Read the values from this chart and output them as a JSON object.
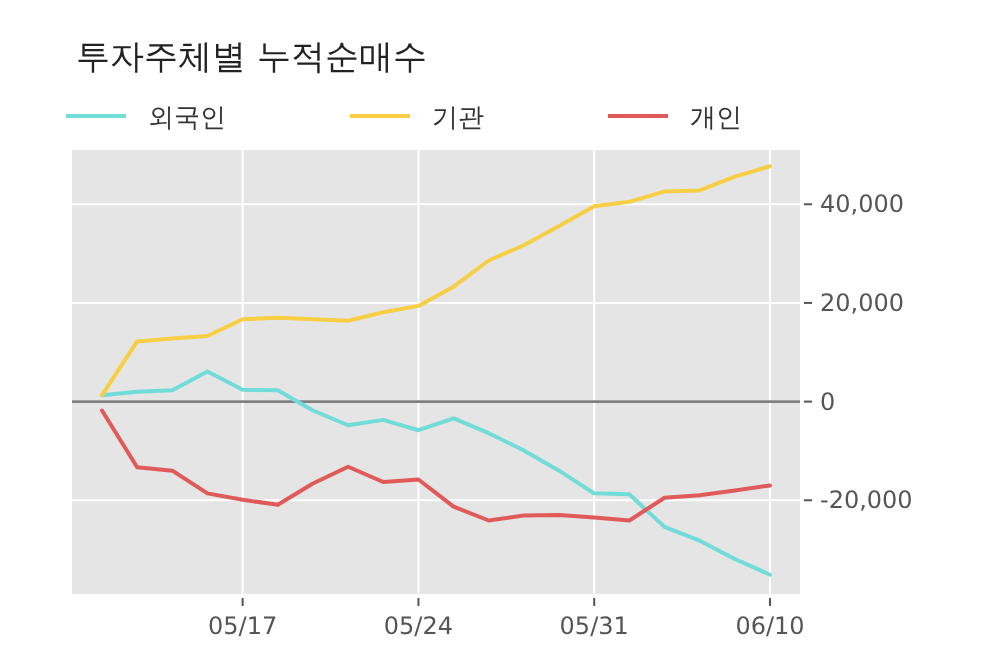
{
  "chart_data": {
    "type": "line",
    "title": "투자주체별 누적순매수",
    "categories": [
      null,
      null,
      null,
      null,
      "05/17",
      null,
      null,
      null,
      null,
      "05/24",
      null,
      null,
      null,
      null,
      "05/31",
      null,
      null,
      null,
      null,
      "06/10"
    ],
    "series": [
      {
        "name": "외국인",
        "color": "#72dcd8",
        "values": [
          1300,
          2000,
          2300,
          6100,
          2400,
          2300,
          -1800,
          -4800,
          -3700,
          -5800,
          -3400,
          -6400,
          -9900,
          -14000,
          -18600,
          -18800,
          -25400,
          -28200,
          -31900,
          -35100
        ]
      },
      {
        "name": "기관",
        "color": "#f7cf45",
        "values": [
          1300,
          12200,
          12800,
          13300,
          16700,
          17000,
          16700,
          16400,
          18100,
          19400,
          23300,
          28600,
          31700,
          35600,
          39600,
          40500,
          42600,
          42800,
          45600,
          47700
        ]
      },
      {
        "name": "개인",
        "color": "#e05a5a",
        "values": [
          -1800,
          -13300,
          -14000,
          -18600,
          -19900,
          -20900,
          -16600,
          -13200,
          -16300,
          -15800,
          -21300,
          -24100,
          -23100,
          -23000,
          -23500,
          -24100,
          -19500,
          -19000,
          -18000,
          -17000
        ]
      }
    ],
    "ylim": [
      -39000,
      51000
    ],
    "yticks": [
      {
        "value": -20000,
        "label": "-20,000"
      },
      {
        "value": 0,
        "label": "0"
      },
      {
        "value": 20000,
        "label": "20,000"
      },
      {
        "value": 40000,
        "label": "40,000"
      }
    ],
    "ref_lines": [
      {
        "axis": "y",
        "value": 0,
        "color": "#808080"
      }
    ],
    "grid": true,
    "legend": "top left"
  }
}
